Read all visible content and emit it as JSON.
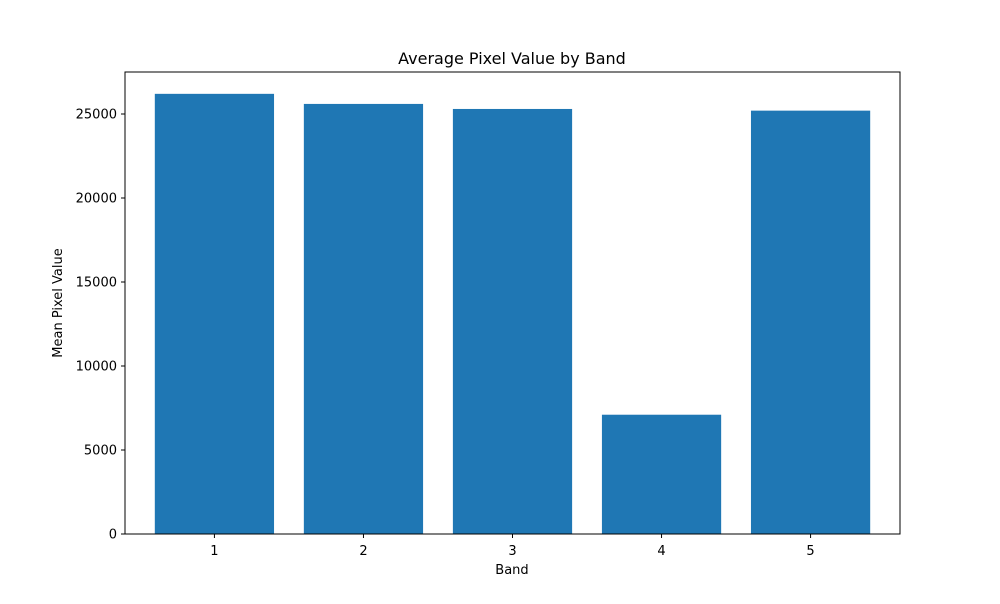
{
  "chart_data": {
    "type": "bar",
    "title": "Average Pixel Value by Band",
    "xlabel": "Band",
    "ylabel": "Mean Pixel Value",
    "categories": [
      "1",
      "2",
      "3",
      "4",
      "5"
    ],
    "values": [
      26200,
      25600,
      25300,
      7100,
      25200
    ],
    "ylim": [
      0,
      27500
    ],
    "yticks": [
      0,
      5000,
      10000,
      15000,
      20000,
      25000
    ],
    "ytick_labels": [
      "0",
      "5000",
      "10000",
      "15000",
      "20000",
      "25000"
    ],
    "grid": false,
    "legend": "none",
    "bar_color": "#1f77b4"
  }
}
